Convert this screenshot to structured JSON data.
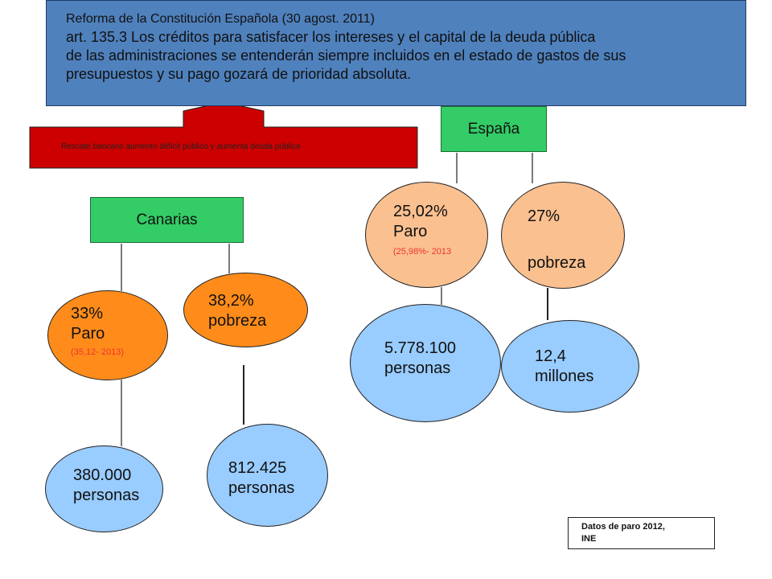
{
  "header_box": {
    "line1": "Reforma de la Constitución Española (30 agost. 2011)",
    "line2": "art. 135.3 Los créditos para satisfacer los intereses y el capital de la deuda pública",
    "line3": "de las administraciones se entenderán siempre incluidos en el estado de gastos de sus",
    "line4": "presupuestos y su pago gozará de prioridad absoluta."
  },
  "arrow": {
    "label": "Rescate bancario aumento déficit  público y aumenta deuda pública",
    "color": "#cc0000"
  },
  "espana": {
    "label": "España",
    "paro": {
      "value": "25,02%",
      "label": "Paro",
      "note": "(25,98%- 2013"
    },
    "pobreza": {
      "value": "27%",
      "label": "pobreza"
    },
    "paro_personas": {
      "value": "5.778.100",
      "label": "personas"
    },
    "pobreza_personas": {
      "value": "12,4",
      "label": "millones"
    }
  },
  "canarias": {
    "label": "Canarias",
    "paro": {
      "value": "33%",
      "label": "Paro",
      "note": "(35,12- 2013)"
    },
    "pobreza": {
      "value": "38,2%",
      "label": "pobreza"
    },
    "paro_personas": {
      "value": "380.000",
      "label": "personas"
    },
    "pobreza_personas": {
      "value": "812.425",
      "label": "personas"
    }
  },
  "footnote": {
    "line1": "Datos de paro  2012,",
    "line2": "INE"
  },
  "colors": {
    "header": "#4f81bd",
    "green": "#33cc66",
    "orange": "#ff8c1a",
    "peach": "#fac090",
    "blue": "#99ccff",
    "arrow_red": "#cc0000"
  }
}
